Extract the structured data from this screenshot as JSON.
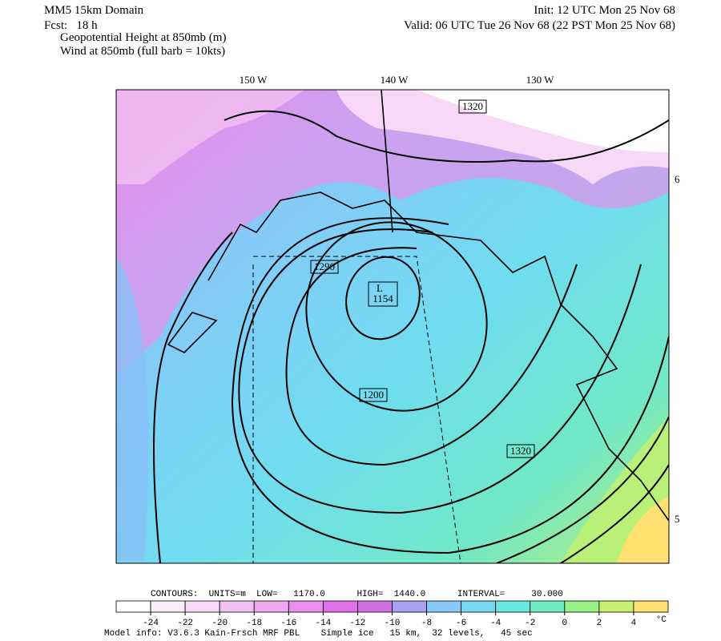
{
  "header": {
    "left": [
      "MM5 15km Domain",
      "Fcst:   18 h"
    ],
    "init": "Init: 12 UTC Mon 25 Nov 68",
    "valid": "Valid: 06 UTC Tue 26 Nov 68 (22 PST Mon 25 Nov 68)",
    "fields": [
      "Geopotential Height at 850mb (m)",
      "Wind at 850mb (full barb = 10kts)"
    ]
  },
  "map": {
    "longitudes": [
      "150 W",
      "140 W",
      "130 W"
    ],
    "latitudes": [
      "6",
      "5"
    ],
    "contour_labels": [
      "1320",
      "1290",
      "1200",
      "1320"
    ],
    "low": {
      "symbol": "L",
      "value": "1154"
    }
  },
  "contours_info": "CONTOURS:  UNITS=m  LOW=   1170.0      HIGH=  1440.0      INTERVAL=     30.000",
  "colorbar": {
    "labels": [
      -24,
      -22,
      -20,
      -18,
      -16,
      -14,
      -12,
      -10,
      -8,
      -6,
      -4,
      -2,
      0,
      2,
      4
    ],
    "unit": "°C",
    "colors": [
      "#ffffff",
      "#fbeefb",
      "#f7d8f7",
      "#f3c0f3",
      "#eeaaee",
      "#e890ec",
      "#e070e8",
      "#d070e0",
      "#a8a0f0",
      "#88c8f8",
      "#78d8f0",
      "#68e8e0",
      "#70ecc0",
      "#98f088",
      "#c8f070",
      "#ffe070"
    ]
  },
  "footer": "Model info: V3.6.3 Kain-Frsch MRF PBL    Simple ice   15 km,  32 levels,   45 sec"
}
